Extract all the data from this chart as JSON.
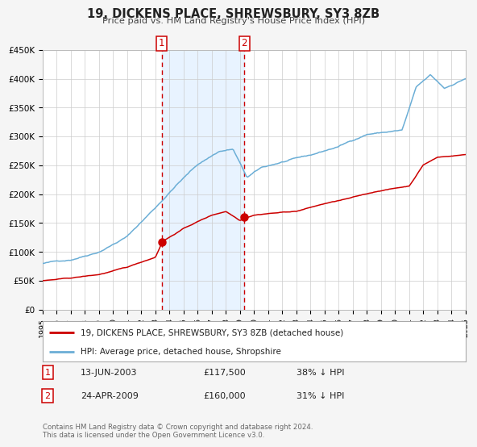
{
  "title": "19, DICKENS PLACE, SHREWSBURY, SY3 8ZB",
  "subtitle": "Price paid vs. HM Land Registry's House Price Index (HPI)",
  "legend_line1": "19, DICKENS PLACE, SHREWSBURY, SY3 8ZB (detached house)",
  "legend_line2": "HPI: Average price, detached house, Shropshire",
  "footnote1": "Contains HM Land Registry data © Crown copyright and database right 2024.",
  "footnote2": "This data is licensed under the Open Government Licence v3.0.",
  "purchase1_label": "1",
  "purchase1_date": "13-JUN-2003",
  "purchase1_price": "£117,500",
  "purchase1_hpi": "38% ↓ HPI",
  "purchase2_label": "2",
  "purchase2_date": "24-APR-2009",
  "purchase2_price": "£160,000",
  "purchase2_hpi": "31% ↓ HPI",
  "vline1_x": 2003.45,
  "vline2_x": 2009.31,
  "marker1_x": 2003.45,
  "marker1_y": 117500,
  "marker2_x": 2009.31,
  "marker2_y": 160000,
  "hpi_color": "#6baed6",
  "price_color": "#cc0000",
  "marker_color": "#cc0000",
  "vline_color": "#cc0000",
  "shade_color": "#ddeeff",
  "background_color": "#f5f5f5",
  "plot_bg_color": "#ffffff",
  "ylim": [
    0,
    450000
  ],
  "xlim": [
    1995,
    2025
  ],
  "yticks": [
    0,
    50000,
    100000,
    150000,
    200000,
    250000,
    300000,
    350000,
    400000,
    450000
  ],
  "ytick_labels": [
    "£0",
    "£50K",
    "£100K",
    "£150K",
    "£200K",
    "£250K",
    "£300K",
    "£350K",
    "£400K",
    "£450K"
  ],
  "xtick_years": [
    1995,
    1996,
    1997,
    1998,
    1999,
    2000,
    2001,
    2002,
    2003,
    2004,
    2005,
    2006,
    2007,
    2008,
    2009,
    2010,
    2011,
    2012,
    2013,
    2014,
    2015,
    2016,
    2017,
    2018,
    2019,
    2020,
    2021,
    2022,
    2023,
    2024,
    2025
  ],
  "hpi_anchors_x": [
    1995,
    1997,
    1999,
    2001,
    2003,
    2004.5,
    2006,
    2007.5,
    2008.5,
    2009.5,
    2010.5,
    2012,
    2014,
    2016,
    2018,
    2019,
    2020.5,
    2021.5,
    2022.5,
    2023.5,
    2025
  ],
  "hpi_anchors_y": [
    80000,
    87000,
    103000,
    130000,
    180000,
    220000,
    255000,
    278000,
    282000,
    232000,
    248000,
    258000,
    268000,
    283000,
    305000,
    308000,
    312000,
    385000,
    405000,
    382000,
    400000
  ],
  "price_anchors_x": [
    1995,
    1997,
    1999,
    2001,
    2003,
    2003.5,
    2005,
    2006,
    2007,
    2008,
    2009,
    2009.4,
    2010,
    2011,
    2013,
    2015,
    2017,
    2019,
    2021,
    2022,
    2023,
    2025
  ],
  "price_anchors_y": [
    50000,
    54000,
    60000,
    72000,
    90000,
    117500,
    140000,
    152000,
    163000,
    170000,
    155000,
    160000,
    165000,
    168000,
    172000,
    185000,
    195000,
    207000,
    215000,
    252000,
    265000,
    270000
  ]
}
